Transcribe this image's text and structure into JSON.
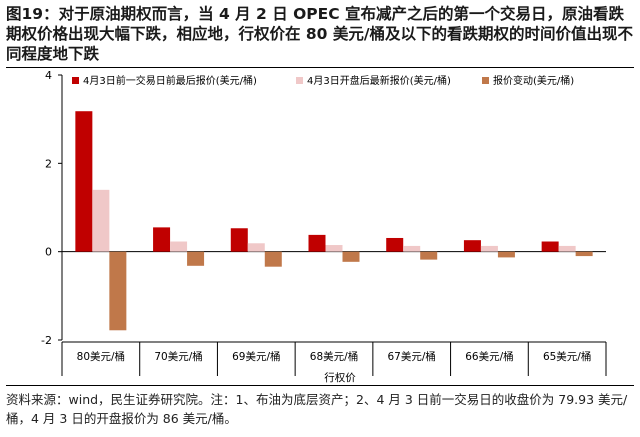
{
  "figure": {
    "title": "图19：对于原油期权而言，当 4 月 2 日 OPEC 宣布减产之后的第一个交易日，原油看跌期权价格出现大幅下跌，相应地，行权价在 80 美元/桶及以下的看跌期权的时间价值出现不同程度地下跌",
    "source": "资料来源：wind，民生证券研究院。注：1、布油为底层资产；2、4 月 3 日前一交易日的收盘价为 79.93 美元/桶，4 月 3 日的开盘报价为 86 美元/桶。"
  },
  "chart_data": {
    "type": "bar",
    "categories": [
      "80美元/桶",
      "70美元/桶",
      "69美元/桶",
      "68美元/桶",
      "67美元/桶",
      "66美元/桶",
      "65美元/桶"
    ],
    "series": [
      {
        "name": "4月3日前一交易日前最后报价(美元/桶)",
        "color": "#c00000",
        "values": [
          3.18,
          0.55,
          0.53,
          0.38,
          0.31,
          0.26,
          0.23
        ]
      },
      {
        "name": "4月3日开盘后最新报价(美元/桶)",
        "color": "#f0c8c8",
        "values": [
          1.4,
          0.23,
          0.19,
          0.15,
          0.13,
          0.13,
          0.13
        ]
      },
      {
        "name": "报价变动(美元/桶)",
        "color": "#c0784a",
        "values": [
          -1.78,
          -0.32,
          -0.34,
          -0.23,
          -0.18,
          -0.13,
          -0.1
        ]
      }
    ],
    "xlabel": "行权价",
    "ylabel": "",
    "ylim": [
      -2,
      4
    ],
    "yticks": [
      -2,
      0,
      2,
      4
    ],
    "legend_position": "top",
    "grid": false
  }
}
